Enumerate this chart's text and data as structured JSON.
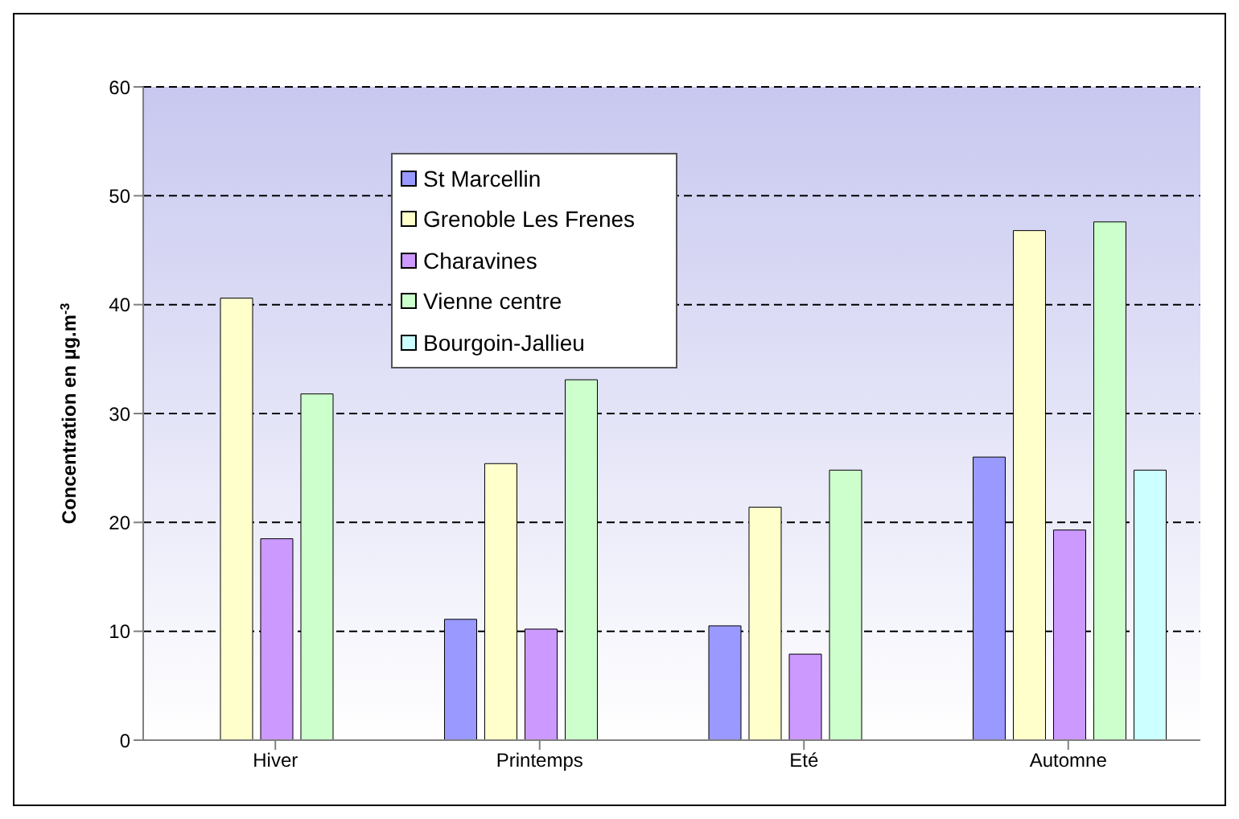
{
  "chart_data": {
    "type": "bar",
    "ylabel": "Concentration en µg.m$^{-3}$",
    "categories": [
      "Hiver",
      "Printemps",
      "Eté",
      "Automne"
    ],
    "series": [
      {
        "name": "St Marcellin",
        "color": "#9999ff",
        "values": [
          null,
          11.1,
          10.5,
          26.0
        ]
      },
      {
        "name": "Grenoble Les Frenes",
        "color": "#ffffcc",
        "values": [
          40.6,
          25.4,
          21.4,
          46.8
        ]
      },
      {
        "name": "Charavines",
        "color": "#cc99ff",
        "values": [
          18.5,
          10.2,
          7.9,
          19.3
        ]
      },
      {
        "name": "Vienne centre",
        "color": "#ccffcc",
        "values": [
          31.8,
          33.1,
          24.8,
          47.6
        ]
      },
      {
        "name": "Bourgoin-Jallieu",
        "color": "#ccffff",
        "values": [
          null,
          null,
          null,
          24.8
        ]
      }
    ],
    "ylim": [
      0,
      60
    ],
    "yticks": [
      0,
      10,
      20,
      30,
      40,
      50,
      60
    ],
    "grid": "y",
    "legend": "top left"
  }
}
